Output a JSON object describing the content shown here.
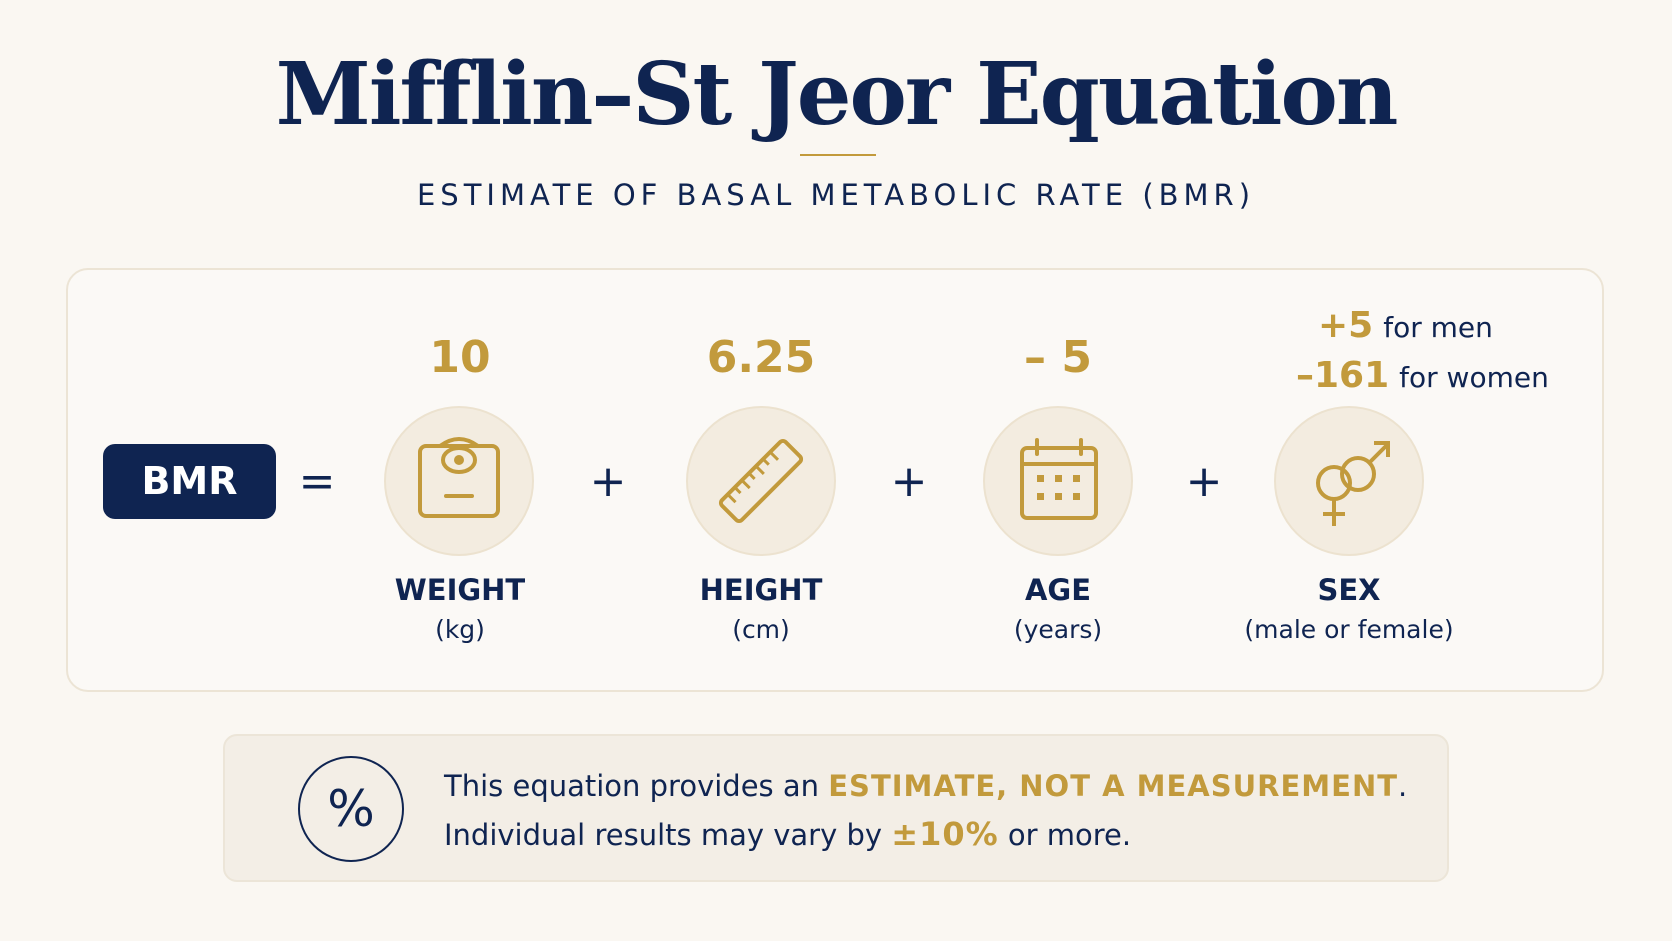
{
  "title": "Mifflin–St Jeor Equation",
  "subtitle": "ESTIMATE OF BASAL METABOLIC RATE (BMR)",
  "equation": {
    "lhs": "BMR",
    "equals": "=",
    "plus": "+",
    "terms": [
      {
        "coefficient": "10",
        "name": "WEIGHT",
        "unit": "(kg)",
        "icon": "scale-icon"
      },
      {
        "coefficient": "6.25",
        "name": "HEIGHT",
        "unit": "(cm)",
        "icon": "ruler-icon"
      },
      {
        "coefficient": "– 5",
        "name": "AGE",
        "unit": "(years)",
        "icon": "calendar-icon"
      },
      {
        "name": "SEX",
        "unit": "(male or female)",
        "icon": "gender-symbols-icon"
      }
    ],
    "sex_constants": [
      {
        "value": "+5",
        "label": "for men"
      },
      {
        "value": "–161",
        "label": "for women"
      }
    ]
  },
  "note": {
    "icon": "percent-icon",
    "symbol": "%",
    "line1_prefix": "This equation provides an ",
    "line1_emphasis": "ESTIMATE, NOT A MEASUREMENT",
    "line1_suffix": ".",
    "line2_prefix": "Individual results may vary by ",
    "line2_emphasis": "±10%",
    "line2_suffix": " or more."
  },
  "colors": {
    "navy": "#0f2451",
    "gold": "#c29a3c",
    "background": "#faf7f2"
  }
}
